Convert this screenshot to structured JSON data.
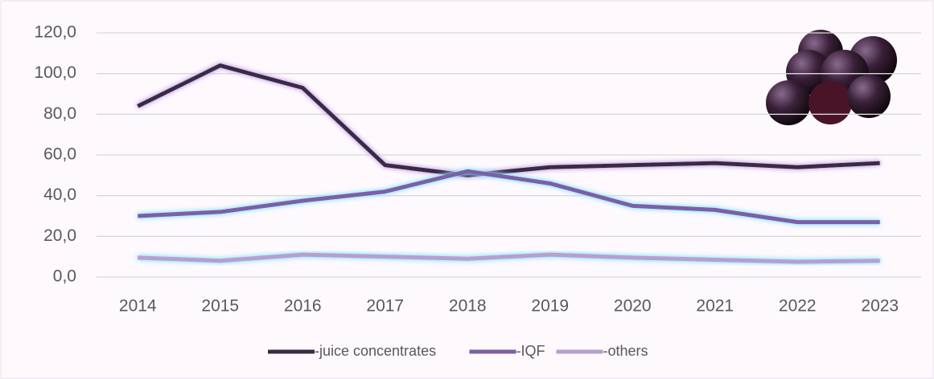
{
  "chart_data": {
    "type": "line",
    "categories": [
      "2014",
      "2015",
      "2016",
      "2017",
      "2018",
      "2019",
      "2020",
      "2021",
      "2022",
      "2023"
    ],
    "series": [
      {
        "name": "-juice concentrates",
        "color": "#3b2a45",
        "values": [
          84,
          104,
          93,
          55,
          50,
          54,
          55,
          56,
          54,
          56
        ]
      },
      {
        "name": "-IQF",
        "color": "#7b5ea7",
        "values": [
          30,
          32,
          37.5,
          42,
          52,
          46,
          35,
          33,
          27,
          27
        ]
      },
      {
        "name": "-others",
        "color": "#b79fd0",
        "values": [
          9.5,
          8,
          11,
          10,
          9,
          11,
          9.5,
          8.5,
          7.5,
          8
        ]
      }
    ],
    "ylim": [
      0,
      120
    ],
    "yticks": [
      {
        "value": 0,
        "label": "0,0"
      },
      {
        "value": 20,
        "label": "20,0"
      },
      {
        "value": 40,
        "label": "40,0"
      },
      {
        "value": 60,
        "label": "60,0"
      },
      {
        "value": 80,
        "label": "80,0"
      },
      {
        "value": 100,
        "label": "100,0"
      },
      {
        "value": 120,
        "label": "120,0"
      }
    ],
    "grid": true,
    "legend": "bottom"
  }
}
